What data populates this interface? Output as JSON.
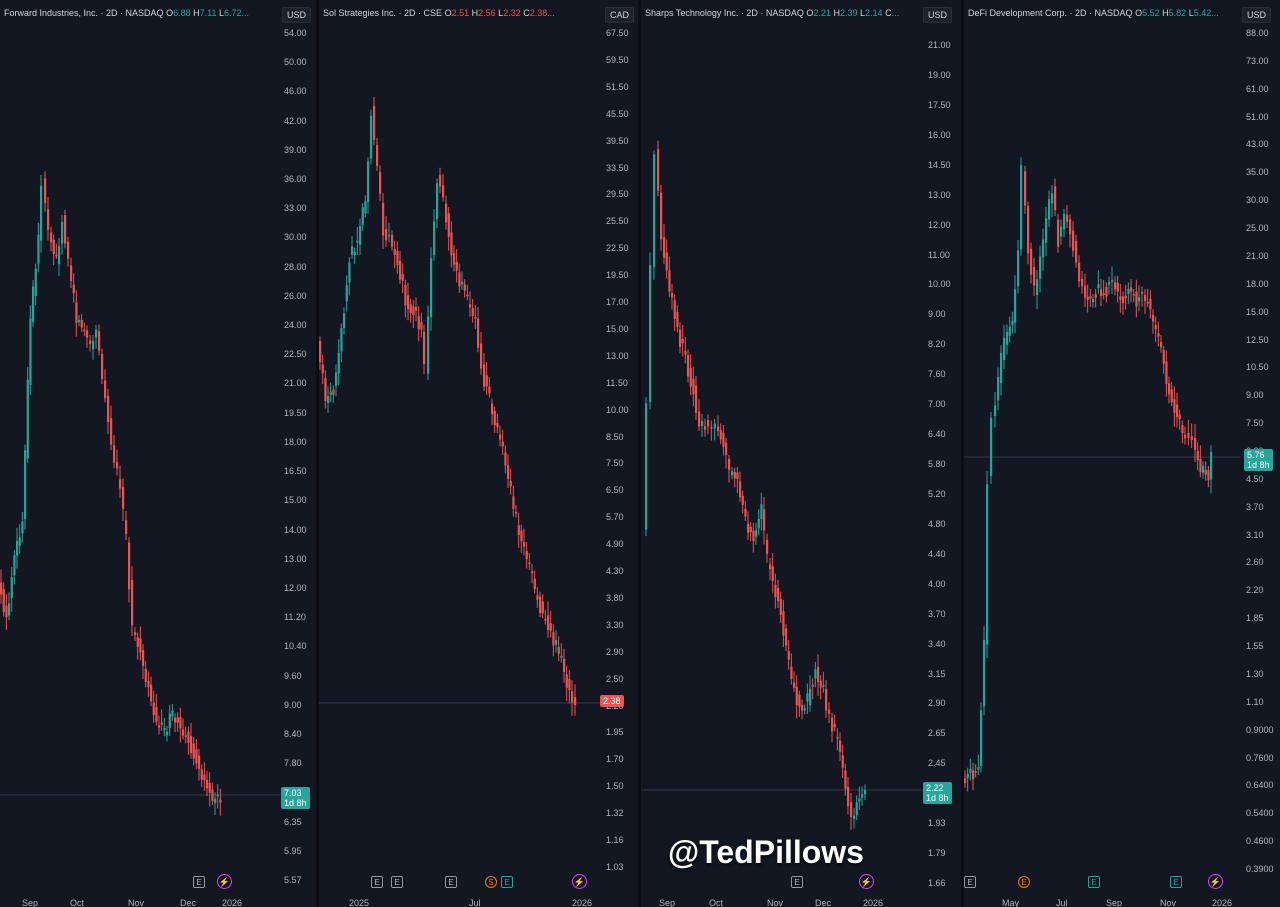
{
  "panels": [
    {
      "id": "fwdi",
      "title": "Forward Industries, Inc. · 2D · NASDAQ",
      "ohlc": [
        {
          "k": "O",
          "v": "6.88"
        },
        {
          "k": "H",
          "v": "7.11"
        },
        {
          "k": "L",
          "v": "6.72..."
        }
      ],
      "currency": "USD",
      "axis_ticks": [
        "54.00",
        "50.00",
        "46.00",
        "42.00",
        "39.00",
        "36.00",
        "33.00",
        "30.00",
        "28.00",
        "26.00",
        "24.00",
        "22.50",
        "21.00",
        "19.50",
        "18.00",
        "16.50",
        "15.00",
        "14.00",
        "13.00",
        "12.00",
        "11.20",
        "10.40",
        "9.60",
        "9.00",
        "8.40",
        "7.80",
        "7.30",
        "6.35",
        "5.95",
        "5.57"
      ],
      "price_label": {
        "value": "7.03",
        "countdown": "1d 8h",
        "color": "#26a69a"
      },
      "x_labels": [
        "Sep",
        "Oct",
        "Nov",
        "Dec",
        "2026"
      ],
      "events": [
        {
          "type": "E"
        },
        {
          "type": "bolt"
        }
      ]
    },
    {
      "id": "sol",
      "title": "Sol Strategies Inc. · 2D · CSE",
      "ohlc": [
        {
          "k": "O",
          "v": "2.51"
        },
        {
          "k": "H",
          "v": "2.56"
        },
        {
          "k": "L",
          "v": "2.32"
        },
        {
          "k": "C",
          "v": "2.38..."
        }
      ],
      "currency": "CAD",
      "axis_ticks": [
        "67.50",
        "59.50",
        "51.50",
        "45.50",
        "39.50",
        "33.50",
        "29.50",
        "25.50",
        "22.50",
        "19.50",
        "17.00",
        "15.00",
        "13.00",
        "11.50",
        "10.00",
        "8.50",
        "7.50",
        "6.50",
        "5.70",
        "4.90",
        "4.30",
        "3.80",
        "3.30",
        "2.90",
        "2.50",
        "2.20",
        "1.95",
        "1.70",
        "1.50",
        "1.32",
        "1.16",
        "1.03"
      ],
      "price_label": {
        "value": "2.38",
        "countdown": "",
        "color": "#ef5350"
      },
      "x_labels": [
        "2025",
        "Jul",
        "2026"
      ],
      "events": [
        {
          "type": "E"
        },
        {
          "type": "E"
        },
        {
          "type": "E"
        },
        {
          "type": "S"
        },
        {
          "type": "E-green"
        },
        {
          "type": "bolt"
        }
      ]
    },
    {
      "id": "stss",
      "title": "Sharps Technology Inc. · 2D · NASDAQ",
      "ohlc": [
        {
          "k": "O",
          "v": "2.21"
        },
        {
          "k": "H",
          "v": "2.39"
        },
        {
          "k": "L",
          "v": "2.14"
        },
        {
          "k": "C",
          "v": "..."
        }
      ],
      "currency": "USD",
      "axis_ticks": [
        "21.00",
        "19.00",
        "17.50",
        "16.00",
        "14.50",
        "13.00",
        "12.00",
        "11.00",
        "10.00",
        "9.00",
        "8.20",
        "7.60",
        "7.00",
        "6.40",
        "5.80",
        "5.20",
        "4.80",
        "4.40",
        "4.00",
        "3.70",
        "3.40",
        "3.15",
        "2.90",
        "2.65",
        "2.45",
        "2.09",
        "1.93",
        "1.79",
        "1.66"
      ],
      "price_label": {
        "value": "2.22",
        "countdown": "1d 8h",
        "color": "#26a69a"
      },
      "x_labels": [
        "Sep",
        "Oct",
        "Nov",
        "Dec",
        "2026"
      ],
      "events": [
        {
          "type": "E"
        },
        {
          "type": "bolt"
        }
      ]
    },
    {
      "id": "dfdv",
      "title": "DeFi Development Corp. · 2D · NASDAQ",
      "ohlc": [
        {
          "k": "O",
          "v": "5.52"
        },
        {
          "k": "H",
          "v": "5.82"
        },
        {
          "k": "L",
          "v": "5.42..."
        }
      ],
      "currency": "USD",
      "axis_ticks": [
        "88.00",
        "73.00",
        "61.00",
        "51.00",
        "43.00",
        "35.00",
        "30.00",
        "25.00",
        "21.00",
        "18.00",
        "15.00",
        "12.50",
        "10.50",
        "9.00",
        "7.50",
        "6.30",
        "4.50",
        "3.70",
        "3.10",
        "2.60",
        "2.20",
        "1.85",
        "1.55",
        "1.30",
        "1.10",
        "0.9000",
        "0.7600",
        "0.6400",
        "0.5400",
        "0.4600",
        "0.3900"
      ],
      "price_label": {
        "value": "5.76",
        "countdown": "1d 8h",
        "color": "#26a69a"
      },
      "x_labels": [
        "May",
        "Jul",
        "Sep",
        "Nov",
        "2026"
      ],
      "events": [
        {
          "type": "E"
        },
        {
          "type": "E-orange"
        },
        {
          "type": "E-green"
        },
        {
          "type": "E-green"
        },
        {
          "type": "bolt"
        }
      ]
    }
  ],
  "watermark": "@TedPillows",
  "colors": {
    "up": "#26a69a",
    "down": "#ef5350",
    "background": "#131722"
  }
}
